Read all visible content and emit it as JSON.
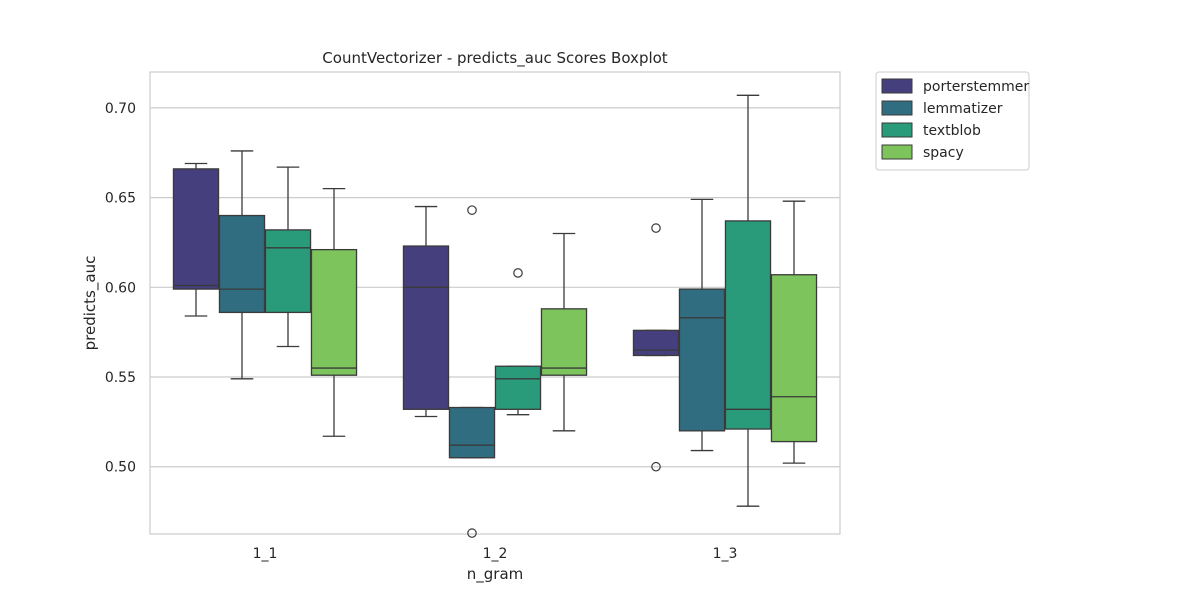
{
  "chart_data": {
    "type": "boxplot",
    "title": "CountVectorizer - predicts_auc  Scores Boxplot",
    "xlabel": "n_gram",
    "ylabel": "predicts_auc",
    "categories": [
      "1_1",
      "1_2",
      "1_3"
    ],
    "ylim": [
      0.4625,
      0.72
    ],
    "yticks": [
      0.5,
      0.55,
      0.6,
      0.65,
      0.7
    ],
    "ytick_labels": [
      "0.50",
      "0.55",
      "0.60",
      "0.65",
      "0.70"
    ],
    "grid": "horizontal",
    "legend_position": "outside-upper-right",
    "series": [
      {
        "name": "porterstemmer",
        "color": "#453f7d",
        "boxes": [
          {
            "category": "1_1",
            "whisker_low": 0.584,
            "q1": 0.599,
            "median": 0.601,
            "q3": 0.666,
            "whisker_high": 0.669,
            "outliers": []
          },
          {
            "category": "1_2",
            "whisker_low": 0.528,
            "q1": 0.532,
            "median": 0.6,
            "q3": 0.623,
            "whisker_high": 0.645,
            "outliers": []
          },
          {
            "category": "1_3",
            "whisker_low": 0.562,
            "q1": 0.562,
            "median": 0.565,
            "q3": 0.576,
            "whisker_high": 0.576,
            "outliers": [
              0.633,
              0.5
            ]
          }
        ]
      },
      {
        "name": "lemmatizer",
        "color": "#306d80",
        "boxes": [
          {
            "category": "1_1",
            "whisker_low": 0.549,
            "q1": 0.586,
            "median": 0.599,
            "q3": 0.64,
            "whisker_high": 0.676,
            "outliers": []
          },
          {
            "category": "1_2",
            "whisker_low": 0.505,
            "q1": 0.505,
            "median": 0.512,
            "q3": 0.533,
            "whisker_high": 0.533,
            "outliers": [
              0.643,
              0.463
            ]
          },
          {
            "category": "1_3",
            "whisker_low": 0.509,
            "q1": 0.52,
            "median": 0.583,
            "q3": 0.599,
            "whisker_high": 0.649,
            "outliers": []
          }
        ]
      },
      {
        "name": "textblob",
        "color": "#2a9b7a",
        "boxes": [
          {
            "category": "1_1",
            "whisker_low": 0.567,
            "q1": 0.586,
            "median": 0.622,
            "q3": 0.632,
            "whisker_high": 0.667,
            "outliers": []
          },
          {
            "category": "1_2",
            "whisker_low": 0.529,
            "q1": 0.532,
            "median": 0.549,
            "q3": 0.556,
            "whisker_high": 0.556,
            "outliers": [
              0.608
            ]
          },
          {
            "category": "1_3",
            "whisker_low": 0.478,
            "q1": 0.521,
            "median": 0.532,
            "q3": 0.637,
            "whisker_high": 0.707,
            "outliers": []
          }
        ]
      },
      {
        "name": "spacy",
        "color": "#7cc45b",
        "boxes": [
          {
            "category": "1_1",
            "whisker_low": 0.517,
            "q1": 0.551,
            "median": 0.555,
            "q3": 0.621,
            "whisker_high": 0.655,
            "outliers": []
          },
          {
            "category": "1_2",
            "whisker_low": 0.52,
            "q1": 0.551,
            "median": 0.555,
            "q3": 0.588,
            "whisker_high": 0.63,
            "outliers": []
          },
          {
            "category": "1_3",
            "whisker_low": 0.502,
            "q1": 0.514,
            "median": 0.539,
            "q3": 0.607,
            "whisker_high": 0.648,
            "outliers": []
          }
        ]
      }
    ]
  }
}
